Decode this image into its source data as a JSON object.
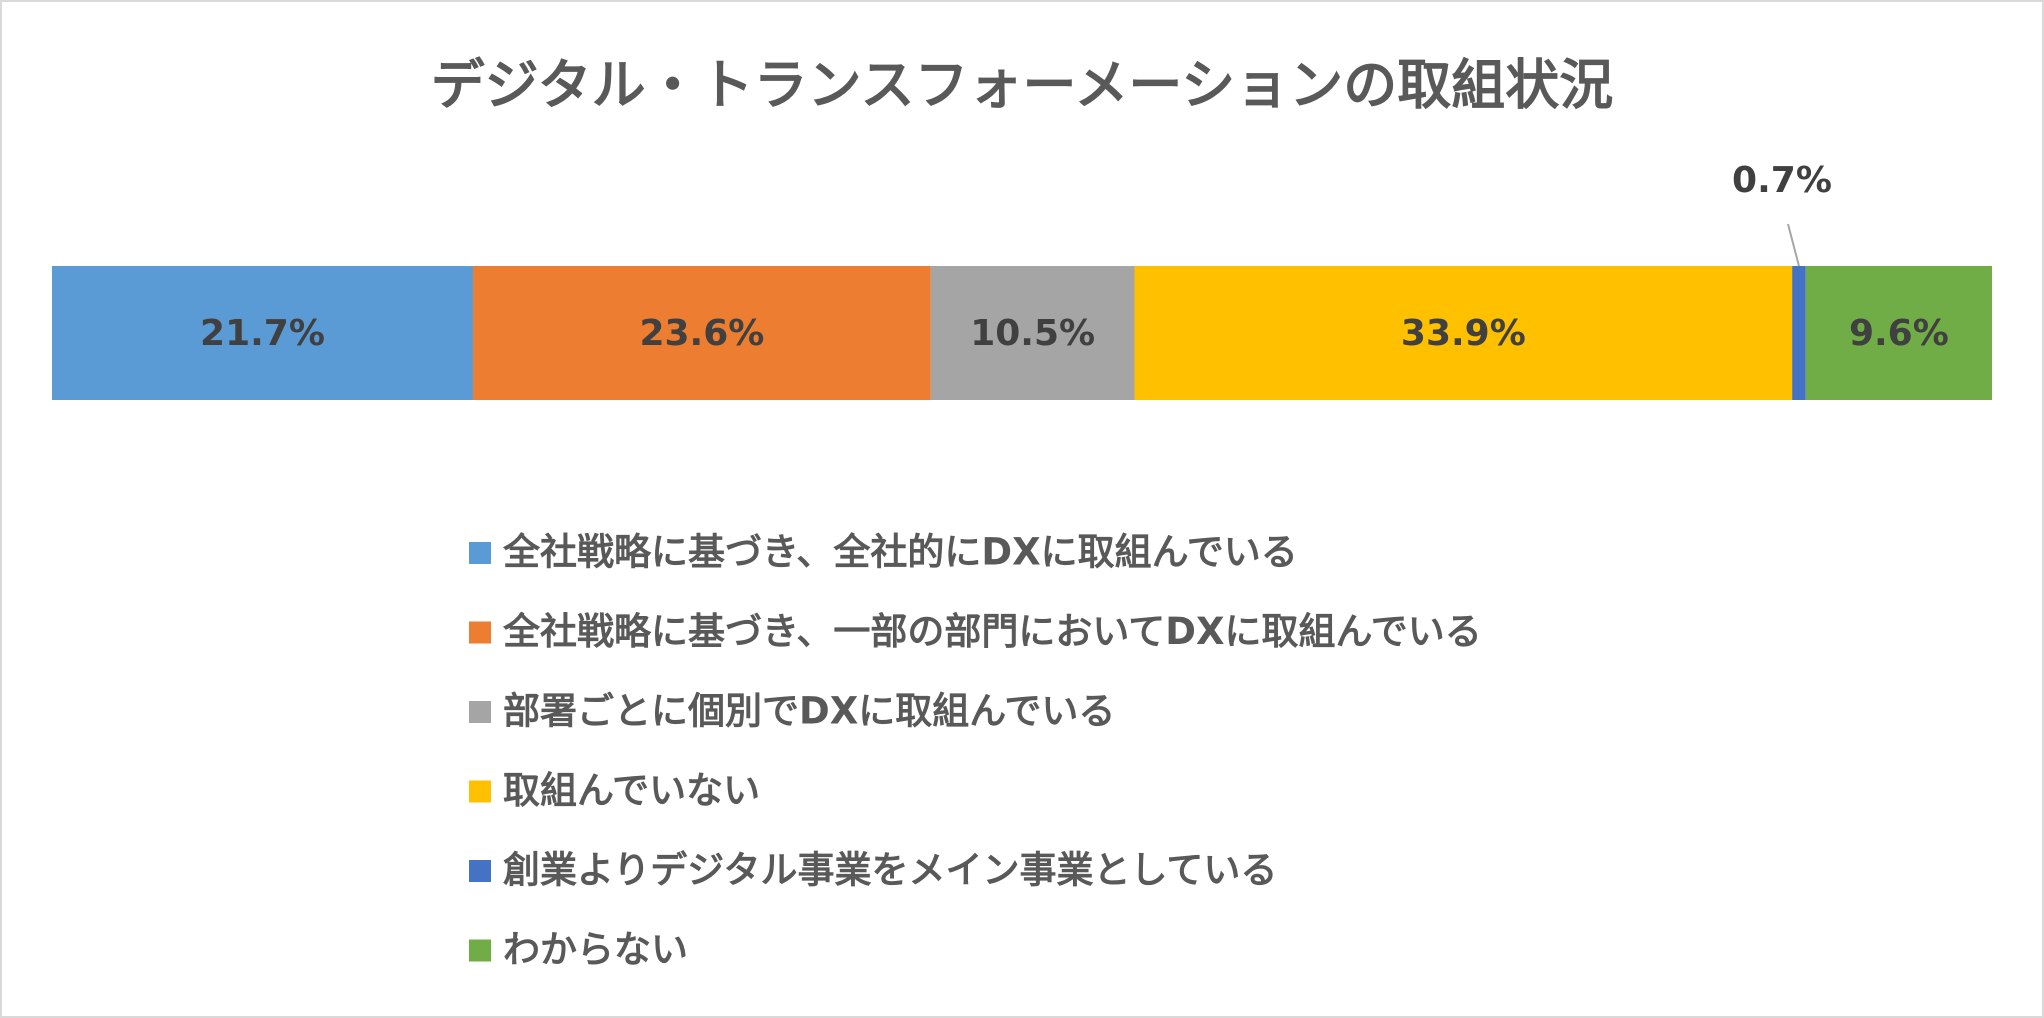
{
  "chart_data": {
    "type": "stacked-bar",
    "title": "デジタル・トランスフォーメーションの取組状況",
    "series": [
      {
        "name": "全社戦略に基づき、全社的にDXに取組んでいる",
        "color": "#5b9bd5",
        "values": [
          21.7
        ],
        "value_labels": [
          "21.7%"
        ]
      },
      {
        "name": "全社戦略に基づき、一部の部門においてDXに取組んでいる",
        "color": "#ed7d31",
        "values": [
          23.6
        ],
        "value_labels": [
          "23.6%"
        ]
      },
      {
        "name": "部署ごとに個別でDXに取組んでいる",
        "color": "#a5a5a5",
        "values": [
          10.5
        ],
        "value_labels": [
          "10.5%"
        ]
      },
      {
        "name": "取組んでいない",
        "color": "#ffc000",
        "values": [
          33.9
        ],
        "value_labels": [
          "33.9%"
        ]
      },
      {
        "name": "創業よりデジタル事業をメイン事業としている",
        "color": "#4472c4",
        "values": [
          0.7
        ],
        "value_labels": [
          "0.7%"
        ]
      },
      {
        "name": "わからない",
        "color": "#70ad47",
        "values": [
          9.6
        ],
        "value_labels": [
          "9.6%"
        ]
      }
    ],
    "legend": "bottom"
  }
}
